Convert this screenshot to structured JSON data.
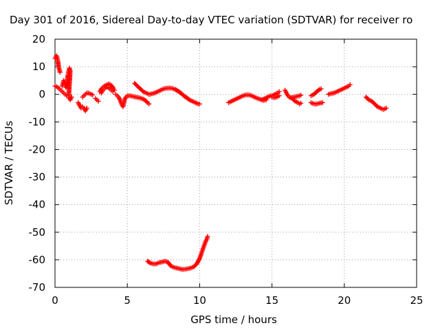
{
  "chart_data": {
    "type": "scatter",
    "title": "Day 301 of 2016, Sidereal Day-to-day VTEC variation (SDTVAR) for receiver ro",
    "xlabel": "GPS time / hours",
    "ylabel": "SDTVAR / TECUs",
    "xlim": [
      0,
      25
    ],
    "ylim": [
      -70,
      20
    ],
    "xticks": [
      0,
      5,
      10,
      15,
      20,
      25
    ],
    "yticks": [
      20,
      10,
      0,
      -10,
      -20,
      -30,
      -40,
      -50,
      -60,
      -70
    ],
    "grid": true,
    "marker": "+",
    "color": "#ff0000",
    "series": [
      {
        "values": [
          [
            0.0,
            13
          ],
          [
            0.1,
            14
          ],
          [
            0.15,
            13.5
          ],
          [
            0.2,
            12
          ],
          [
            0.25,
            10
          ],
          [
            0.3,
            9
          ],
          [
            0.35,
            8
          ]
        ]
      },
      {
        "values": [
          [
            0.0,
            3
          ],
          [
            0.1,
            2.8
          ],
          [
            0.2,
            2.5
          ],
          [
            0.3,
            2
          ],
          [
            0.4,
            1.5
          ],
          [
            0.5,
            1
          ],
          [
            0.6,
            0.5
          ],
          [
            0.7,
            0
          ],
          [
            0.8,
            -0.5
          ]
        ]
      },
      {
        "values": [
          [
            0.5,
            3
          ],
          [
            0.55,
            4
          ],
          [
            0.6,
            5
          ],
          [
            0.65,
            4.5
          ],
          [
            0.7,
            3.5
          ],
          [
            0.75,
            2.5
          ],
          [
            0.8,
            3
          ],
          [
            0.85,
            5
          ],
          [
            0.9,
            7
          ],
          [
            0.95,
            8.5
          ],
          [
            1.0,
            9.5
          ],
          [
            1.05,
            8.5
          ],
          [
            0.95,
            -0.5
          ],
          [
            1.0,
            -1.5
          ],
          [
            1.05,
            -2
          ],
          [
            1.1,
            -1.5
          ],
          [
            1.15,
            -1
          ]
        ]
      },
      {
        "values": [
          [
            1.6,
            -3
          ],
          [
            1.7,
            -4
          ],
          [
            1.8,
            -5
          ],
          [
            1.9,
            -4.5
          ],
          [
            2.0,
            -5
          ],
          [
            2.1,
            -6
          ],
          [
            2.2,
            -5
          ]
        ]
      },
      {
        "values": [
          [
            1.9,
            -1
          ],
          [
            2.0,
            -0.5
          ],
          [
            2.1,
            0
          ],
          [
            2.2,
            0.5
          ],
          [
            2.3,
            0.5
          ],
          [
            2.4,
            0.3
          ],
          [
            2.5,
            0
          ],
          [
            2.6,
            -0.2
          ]
        ]
      },
      {
        "values": [
          [
            2.8,
            -1.5
          ],
          [
            2.9,
            -2
          ],
          [
            3.0,
            -2.5
          ]
        ]
      },
      {
        "values": [
          [
            3.1,
            1
          ],
          [
            3.2,
            2
          ],
          [
            3.3,
            2.5
          ],
          [
            3.4,
            3
          ],
          [
            3.5,
            3.2
          ],
          [
            3.6,
            3.5
          ],
          [
            3.7,
            3.8
          ],
          [
            3.8,
            3.6
          ],
          [
            3.9,
            3.2
          ],
          [
            4.0,
            2.5
          ],
          [
            4.1,
            1.5
          ]
        ]
      },
      {
        "values": [
          [
            3.2,
            0.5
          ],
          [
            3.3,
            1.5
          ],
          [
            3.4,
            2
          ],
          [
            3.5,
            2.5
          ],
          [
            3.6,
            2.6
          ],
          [
            3.7,
            2.4
          ],
          [
            3.8,
            2
          ],
          [
            3.9,
            1.5
          ],
          [
            4.0,
            1
          ]
        ]
      },
      {
        "values": [
          [
            4.2,
            0
          ],
          [
            4.3,
            -0.5
          ],
          [
            4.4,
            -1
          ],
          [
            4.5,
            -2
          ],
          [
            4.6,
            -3.5
          ],
          [
            4.7,
            -4.5
          ],
          [
            4.75,
            -3.5
          ],
          [
            4.8,
            -2
          ],
          [
            4.9,
            -1
          ]
        ]
      },
      {
        "values": [
          [
            5.0,
            -0.5
          ],
          [
            5.2,
            -0.5
          ],
          [
            5.4,
            -0.8
          ],
          [
            5.6,
            -1
          ],
          [
            5.8,
            -1.2
          ],
          [
            6.0,
            -1.5
          ],
          [
            6.2,
            -2
          ],
          [
            6.4,
            -3
          ],
          [
            6.5,
            -3.5
          ]
        ]
      },
      {
        "values": [
          [
            5.5,
            4
          ],
          [
            5.7,
            3
          ],
          [
            5.9,
            2
          ],
          [
            6.1,
            1
          ],
          [
            6.3,
            0.5
          ],
          [
            6.5,
            0
          ],
          [
            6.7,
            0.2
          ],
          [
            6.9,
            0.5
          ],
          [
            7.1,
            1
          ],
          [
            7.3,
            1.5
          ],
          [
            7.5,
            2
          ],
          [
            7.7,
            2.2
          ],
          [
            7.9,
            2.3
          ],
          [
            8.1,
            2.2
          ],
          [
            8.3,
            1.8
          ],
          [
            8.5,
            1.2
          ],
          [
            8.7,
            0.5
          ],
          [
            8.9,
            -0.5
          ],
          [
            9.1,
            -1.2
          ],
          [
            9.3,
            -2
          ],
          [
            9.5,
            -2.5
          ],
          [
            9.7,
            -3
          ],
          [
            9.9,
            -3.5
          ],
          [
            10.0,
            -3.5
          ]
        ]
      },
      {
        "values": [
          [
            6.4,
            -60.5
          ],
          [
            6.6,
            -61.2
          ],
          [
            6.8,
            -61.5
          ],
          [
            7.0,
            -61.5
          ],
          [
            7.2,
            -61.0
          ],
          [
            7.4,
            -60.8
          ],
          [
            7.6,
            -60.5
          ],
          [
            7.8,
            -60.8
          ],
          [
            8.0,
            -62.2
          ],
          [
            8.2,
            -62.7
          ],
          [
            8.4,
            -63.0
          ],
          [
            8.6,
            -63.2
          ],
          [
            8.8,
            -63.5
          ],
          [
            9.0,
            -63.4
          ],
          [
            9.2,
            -63.2
          ],
          [
            9.4,
            -63.0
          ],
          [
            9.6,
            -62.5
          ],
          [
            9.8,
            -61.5
          ],
          [
            10.0,
            -59.5
          ],
          [
            10.1,
            -58
          ],
          [
            10.2,
            -56.5
          ],
          [
            10.3,
            -55
          ],
          [
            10.4,
            -53.5
          ],
          [
            10.5,
            -52.5
          ],
          [
            10.55,
            -51.5
          ]
        ]
      },
      {
        "values": [
          [
            12.0,
            -3
          ],
          [
            12.2,
            -2.5
          ],
          [
            12.4,
            -2
          ],
          [
            12.6,
            -1.5
          ],
          [
            12.8,
            -1
          ],
          [
            13.0,
            -0.5
          ],
          [
            13.2,
            -0.2
          ],
          [
            13.4,
            -0.2
          ],
          [
            13.6,
            -0.5
          ],
          [
            13.8,
            -1
          ],
          [
            14.0,
            -1.5
          ],
          [
            14.2,
            -1.8
          ],
          [
            14.4,
            -2.2
          ],
          [
            14.6,
            -2
          ]
        ]
      },
      {
        "values": [
          [
            14.3,
            -2
          ],
          [
            14.5,
            -1.5
          ],
          [
            14.7,
            -1
          ],
          [
            14.9,
            -0.5
          ],
          [
            15.0,
            -0.5
          ],
          [
            15.2,
            0
          ],
          [
            15.4,
            0.5
          ],
          [
            15.5,
            1
          ]
        ]
      },
      {
        "values": [
          [
            15.0,
            -1
          ],
          [
            15.2,
            -1.2
          ],
          [
            15.4,
            -0.8
          ],
          [
            15.5,
            -0.5
          ]
        ]
      },
      {
        "values": [
          [
            15.9,
            1.5
          ],
          [
            16.0,
            0.5
          ],
          [
            16.1,
            -0.5
          ],
          [
            16.2,
            -1
          ],
          [
            16.3,
            -1.2
          ],
          [
            16.5,
            -1
          ],
          [
            16.7,
            -0.8
          ],
          [
            16.9,
            -0.5
          ],
          [
            17.0,
            -0.3
          ]
        ]
      },
      {
        "values": [
          [
            16.2,
            -1
          ],
          [
            16.4,
            -1.5
          ],
          [
            16.6,
            -2.5
          ],
          [
            16.8,
            -3
          ],
          [
            16.9,
            -3.5
          ],
          [
            17.0,
            -3.2
          ]
        ]
      },
      {
        "values": [
          [
            17.7,
            -3
          ],
          [
            17.9,
            -3.5
          ],
          [
            18.1,
            -3.5
          ],
          [
            18.3,
            -3.2
          ],
          [
            18.5,
            -3
          ]
        ]
      },
      {
        "values": [
          [
            17.7,
            -0.5
          ],
          [
            17.9,
            0
          ],
          [
            18.1,
            1
          ],
          [
            18.3,
            1.8
          ],
          [
            18.4,
            2
          ]
        ]
      },
      {
        "values": [
          [
            18.9,
            0
          ],
          [
            19.1,
            0.3
          ],
          [
            19.3,
            0.5
          ],
          [
            19.5,
            1
          ],
          [
            19.7,
            1.5
          ],
          [
            19.9,
            2
          ],
          [
            20.1,
            2.5
          ],
          [
            20.3,
            3
          ],
          [
            20.4,
            3.5
          ]
        ]
      },
      {
        "values": [
          [
            21.5,
            -1
          ],
          [
            21.7,
            -2
          ],
          [
            21.9,
            -2.5
          ],
          [
            22.1,
            -3.5
          ],
          [
            22.3,
            -4.5
          ],
          [
            22.5,
            -5
          ],
          [
            22.7,
            -5.5
          ],
          [
            22.9,
            -5
          ]
        ]
      }
    ]
  }
}
